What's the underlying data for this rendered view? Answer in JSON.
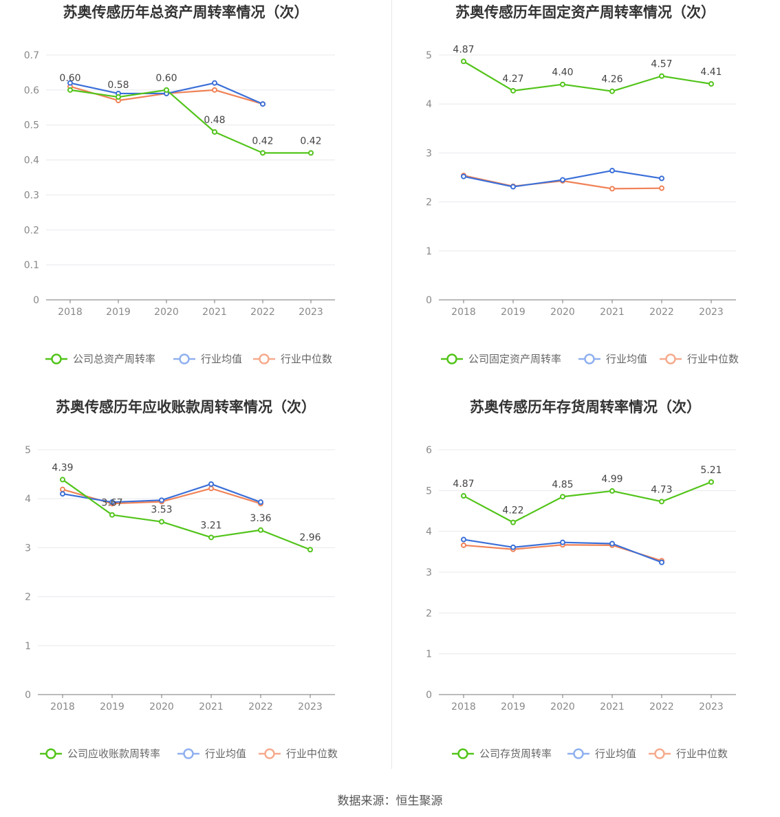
{
  "source": "数据来源：恒生聚源",
  "colors": {
    "company": "#52c41a",
    "avg": "#3a6fd8",
    "median": "#f08257",
    "avgLegend": "#8fb0ef",
    "medianLegend": "#f6aa8d"
  },
  "chart_data": [
    {
      "type": "line",
      "title": "苏奥传感历年总资产周转率情况（次）",
      "x": [
        "2018",
        "2019",
        "2020",
        "2021",
        "2022",
        "2023"
      ],
      "ylim": [
        0,
        0.7
      ],
      "yticks": [
        "0",
        "0.1",
        "0.2",
        "0.3",
        "0.4",
        "0.5",
        "0.6",
        "0.7"
      ],
      "series": [
        {
          "name": "公司总资产周转率",
          "values": [
            0.6,
            0.58,
            0.6,
            0.48,
            0.42,
            0.42
          ],
          "labels": [
            "0.60",
            "0.58",
            "0.60",
            "0.48",
            "0.42",
            "0.42"
          ]
        },
        {
          "name": "行业均值",
          "values": [
            0.62,
            0.59,
            0.59,
            0.62,
            0.56,
            null
          ]
        },
        {
          "name": "行业中位数",
          "values": [
            0.61,
            0.57,
            0.59,
            0.6,
            0.56,
            null
          ]
        }
      ]
    },
    {
      "type": "line",
      "title": "苏奥传感历年固定资产周转率情况（次）",
      "x": [
        "2018",
        "2019",
        "2020",
        "2021",
        "2022",
        "2023"
      ],
      "ylim": [
        0,
        5
      ],
      "yticks": [
        "0",
        "1",
        "2",
        "3",
        "4",
        "5"
      ],
      "series": [
        {
          "name": "公司固定资产周转率",
          "values": [
            4.87,
            4.27,
            4.4,
            4.26,
            4.57,
            4.41
          ],
          "labels": [
            "4.87",
            "4.27",
            "4.40",
            "4.26",
            "4.57",
            "4.41"
          ]
        },
        {
          "name": "行业均值",
          "values": [
            2.52,
            2.31,
            2.45,
            2.64,
            2.48,
            null
          ]
        },
        {
          "name": "行业中位数",
          "values": [
            2.54,
            2.32,
            2.43,
            2.27,
            2.28,
            null
          ]
        }
      ]
    },
    {
      "type": "line",
      "title": "苏奥传感历年应收账款周转率情况（次）",
      "x": [
        "2018",
        "2019",
        "2020",
        "2021",
        "2022",
        "2023"
      ],
      "ylim": [
        0,
        5
      ],
      "yticks": [
        "0",
        "1",
        "2",
        "3",
        "4",
        "5"
      ],
      "series": [
        {
          "name": "公司应收账款周转率",
          "values": [
            4.39,
            3.67,
            3.53,
            3.21,
            3.36,
            2.96
          ],
          "labels": [
            "4.39",
            "3.67",
            "3.53",
            "3.21",
            "3.36",
            "2.96"
          ]
        },
        {
          "name": "行业均值",
          "values": [
            4.1,
            3.93,
            3.97,
            4.3,
            3.93,
            null
          ]
        },
        {
          "name": "行业中位数",
          "values": [
            4.19,
            3.9,
            3.94,
            4.21,
            3.9,
            null
          ]
        }
      ]
    },
    {
      "type": "line",
      "title": "苏奥传感历年存货周转率情况（次）",
      "x": [
        "2018",
        "2019",
        "2020",
        "2021",
        "2022",
        "2023"
      ],
      "ylim": [
        0,
        6
      ],
      "yticks": [
        "0",
        "1",
        "2",
        "3",
        "4",
        "5",
        "6"
      ],
      "series": [
        {
          "name": "公司存货周转率",
          "values": [
            4.87,
            4.22,
            4.85,
            4.99,
            4.73,
            5.21
          ],
          "labels": [
            "4.87",
            "4.22",
            "4.85",
            "4.99",
            "4.73",
            "5.21"
          ]
        },
        {
          "name": "行业均值",
          "values": [
            3.8,
            3.61,
            3.73,
            3.7,
            3.24,
            null
          ]
        },
        {
          "name": "行业中位数",
          "values": [
            3.66,
            3.56,
            3.67,
            3.66,
            3.28,
            null
          ]
        }
      ]
    }
  ]
}
